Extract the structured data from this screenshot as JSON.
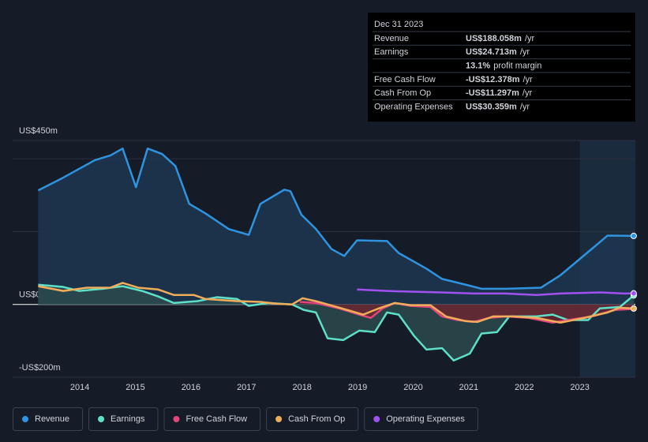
{
  "chart_data": {
    "type": "line",
    "xlim": [
      2012.79,
      2024.0
    ],
    "ylim": [
      -200,
      450
    ],
    "xticks": [
      2014,
      2015,
      2016,
      2017,
      2018,
      2019,
      2020,
      2021,
      2022,
      2023
    ],
    "yticks": [
      {
        "value": 450,
        "label": "US$450m"
      },
      {
        "value": 0,
        "label": "US$0"
      },
      {
        "value": -200,
        "label": "-US$200m"
      }
    ],
    "gridlines": [
      200,
      400
    ],
    "highlight_xlim": [
      2023,
      2024.0
    ],
    "series": [
      {
        "name": "Revenue",
        "color": "#2f94e0",
        "area": "#1c3651",
        "x": [
          2013.25,
          2013.7,
          2014.27,
          2014.55,
          2014.77,
          2015.01,
          2015.22,
          2015.48,
          2015.72,
          2015.97,
          2016.26,
          2016.68,
          2017.04,
          2017.25,
          2017.68,
          2017.79,
          2017.99,
          2018.25,
          2018.53,
          2018.76,
          2018.99,
          2019.53,
          2019.74,
          2020.24,
          2020.52,
          2020.95,
          2021.23,
          2021.66,
          2022.3,
          2022.65,
          2023.08,
          2023.5,
          2023.97
        ],
        "values": [
          313,
          348,
          396,
          409,
          428,
          322,
          428,
          413,
          380,
          276,
          250,
          207,
          191,
          276,
          315,
          311,
          246,
          207,
          152,
          133,
          176,
          174,
          141,
          98,
          70,
          54,
          43,
          43,
          46,
          80,
          135,
          189,
          188.058
        ]
      },
      {
        "name": "Earnings",
        "color": "#5ee0c8",
        "area": "#2c4a4e",
        "x": [
          2013.25,
          2013.7,
          2013.99,
          2014.41,
          2014.77,
          2015.12,
          2015.41,
          2015.69,
          2016.12,
          2016.47,
          2016.83,
          2017.04,
          2017.39,
          2017.82,
          2018.03,
          2018.25,
          2018.46,
          2018.74,
          2019.03,
          2019.31,
          2019.53,
          2019.74,
          2020.02,
          2020.24,
          2020.52,
          2020.73,
          2021.02,
          2021.23,
          2021.51,
          2021.73,
          2022.22,
          2022.51,
          2022.79,
          2023.15,
          2023.36,
          2023.72,
          2023.97
        ],
        "values": [
          54,
          48,
          37,
          43,
          50,
          37,
          22,
          4,
          9,
          20,
          15,
          -4,
          4,
          0,
          -15,
          -22,
          -93,
          -98,
          -72,
          -76,
          -22,
          -28,
          -87,
          -124,
          -120,
          -154,
          -135,
          -80,
          -76,
          -33,
          -33,
          -28,
          -43,
          -43,
          -11,
          -7,
          24.713
        ]
      },
      {
        "name": "Free Cash Flow",
        "color": "#e2457a",
        "area": "#6a2632",
        "x": [
          2017.96,
          2018.25,
          2018.67,
          2019.03,
          2019.24,
          2019.45,
          2019.67,
          2019.95,
          2020.31,
          2020.52,
          2020.8,
          2021.09,
          2021.37,
          2021.66,
          2022.08,
          2022.51,
          2022.79,
          2023.22,
          2023.64,
          2023.97
        ],
        "values": [
          7,
          4,
          -11,
          -28,
          -37,
          -11,
          4,
          -4,
          -7,
          -33,
          -43,
          -48,
          -37,
          -33,
          -37,
          -50,
          -43,
          -33,
          -15,
          -12.378
        ]
      },
      {
        "name": "Cash From Op",
        "color": "#f0ad5a",
        "x": [
          2013.25,
          2013.7,
          2014.13,
          2014.55,
          2014.77,
          2015.05,
          2015.41,
          2015.69,
          2016.05,
          2016.26,
          2016.83,
          2017.25,
          2017.54,
          2017.82,
          2018.01,
          2018.25,
          2018.67,
          2019.1,
          2019.38,
          2019.67,
          2019.95,
          2020.31,
          2020.59,
          2020.95,
          2021.16,
          2021.44,
          2021.8,
          2022.22,
          2022.65,
          2023.08,
          2023.5,
          2023.72,
          2023.97
        ],
        "values": [
          50,
          37,
          46,
          46,
          59,
          46,
          41,
          26,
          26,
          15,
          9,
          7,
          2,
          0,
          17,
          9,
          -9,
          -28,
          -11,
          4,
          -2,
          -2,
          -33,
          -46,
          -48,
          -33,
          -33,
          -37,
          -50,
          -37,
          -22,
          -9,
          -11.297
        ]
      },
      {
        "name": "Operating Expenses",
        "color": "#a051f0",
        "x": [
          2018.99,
          2019.53,
          2019.95,
          2020.52,
          2021.09,
          2021.66,
          2022.22,
          2022.65,
          2023.36,
          2023.79,
          2023.97
        ],
        "values": [
          41,
          37,
          35,
          33,
          30,
          30,
          26,
          30,
          33,
          30,
          30.359
        ]
      }
    ],
    "tooltip": {
      "date": "Dec 31 2023",
      "rows": [
        {
          "label": "Revenue",
          "value": "US$188.058m",
          "suffix": "/yr",
          "color": "#2f94e0"
        },
        {
          "label": "Earnings",
          "value": "US$24.713m",
          "suffix": "/yr",
          "color": "#5ee0c8"
        },
        {
          "label": null,
          "value": "13.1%",
          "suffix": "profit margin",
          "color": "#ffffff"
        },
        {
          "label": "Free Cash Flow",
          "value": "-US$12.378m",
          "suffix": "/yr",
          "color": "#ff4d4d"
        },
        {
          "label": "Cash From Op",
          "value": "-US$11.297m",
          "suffix": "/yr",
          "color": "#ff4d4d"
        },
        {
          "label": "Operating Expenses",
          "value": "US$30.359m",
          "suffix": "/yr",
          "color": "#a051f0"
        }
      ]
    }
  }
}
